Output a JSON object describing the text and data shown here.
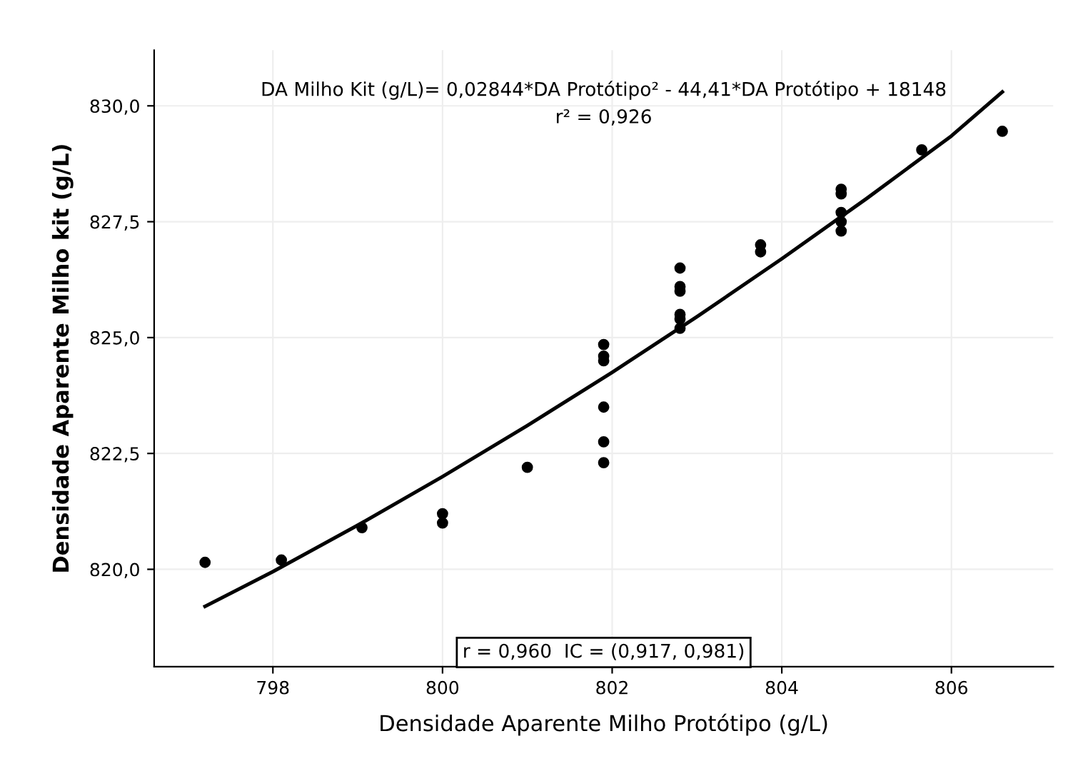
{
  "chart_data": {
    "type": "scatter",
    "xlabel": "Densidade Aparente Milho Protótipo (g/L)",
    "ylabel": "Densidade Aparente Milho kit (g/L)",
    "xlim": [
      796.6,
      807.2
    ],
    "xticks": [
      798,
      800,
      802,
      804,
      806
    ],
    "ylim": [
      817.9,
      831.2
    ],
    "yticks": [
      {
        "value": 820,
        "label": "820,0"
      },
      {
        "value": 822.5,
        "label": "822,5"
      },
      {
        "value": 825,
        "label": "825,0"
      },
      {
        "value": 827.5,
        "label": "827,5"
      },
      {
        "value": 830,
        "label": "830,0"
      }
    ],
    "grid": true,
    "marker": "circle",
    "series": [
      {
        "color": "#000000",
        "x": [
          797.2,
          798.1,
          799.05,
          800,
          800,
          801,
          801.9,
          801.9,
          801.9,
          801.9,
          801.9,
          801.9,
          802.8,
          802.8,
          802.8,
          802.8,
          802.8,
          802.8,
          803.75,
          803.75,
          804.7,
          804.7,
          804.7,
          804.7,
          804.7,
          805.65,
          806.6
        ],
        "values": [
          820.15,
          820.2,
          820.9,
          821.2,
          821.0,
          822.2,
          824.85,
          824.6,
          824.5,
          823.5,
          822.75,
          822.3,
          826.5,
          826.1,
          826.0,
          825.5,
          825.4,
          825.2,
          827.0,
          826.85,
          828.2,
          828.1,
          827.7,
          827.5,
          827.3,
          829.05,
          829.45
        ]
      },
      {
        "type": "line",
        "color": "#000000",
        "marker": "none",
        "line_style": "solid",
        "x": [
          797.2,
          798,
          799,
          800,
          801,
          802,
          803,
          804,
          805,
          806,
          806.6
        ],
        "values": [
          819.2,
          819.95,
          820.95,
          822.0,
          823.1,
          824.25,
          825.45,
          826.7,
          828.0,
          829.35,
          830.3
        ]
      }
    ],
    "annotations": [
      "DA Milho Kit (g/L)= 0,02844*DA Protótipo² - 44,41*DA Protótipo + 18148",
      "r² = 0,926",
      "r = 0,960  IC = (0,917, 0,981)"
    ]
  }
}
